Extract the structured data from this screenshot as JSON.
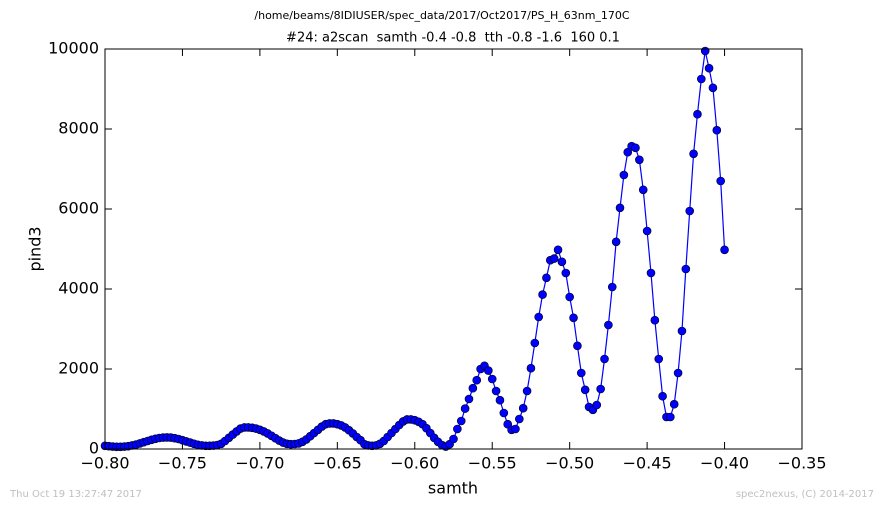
{
  "chart_data": {
    "type": "line",
    "suptitle": "/home/beams/8IDIUSER/spec_data/2017/Oct2017/PS_H_63nm_170C",
    "title": "#24: a2scan  samth -0.4 -0.8  tth -0.8 -1.6  160 0.1",
    "xlabel": "samth",
    "ylabel": "pind3",
    "footer_left": "Thu Oct 19 13:27:47 2017",
    "footer_right": "spec2nexus, (C) 2014-2017",
    "color": "#0000ff",
    "marker": "o",
    "x": [
      -0.8,
      -0.7975,
      -0.795,
      -0.7925,
      -0.79,
      -0.7875,
      -0.785,
      -0.7825,
      -0.78,
      -0.7775,
      -0.775,
      -0.7725,
      -0.77,
      -0.7675,
      -0.765,
      -0.7625,
      -0.76,
      -0.7575,
      -0.755,
      -0.7525,
      -0.75,
      -0.7475,
      -0.745,
      -0.7425,
      -0.74,
      -0.7375,
      -0.735,
      -0.7325,
      -0.73,
      -0.7275,
      -0.725,
      -0.7225,
      -0.72,
      -0.7175,
      -0.715,
      -0.7125,
      -0.71,
      -0.7075,
      -0.705,
      -0.7025,
      -0.7,
      -0.6975,
      -0.695,
      -0.6925,
      -0.69,
      -0.6875,
      -0.685,
      -0.6825,
      -0.68,
      -0.6775,
      -0.675,
      -0.6725,
      -0.67,
      -0.6675,
      -0.665,
      -0.6625,
      -0.66,
      -0.6575,
      -0.655,
      -0.6525,
      -0.65,
      -0.6475,
      -0.645,
      -0.6425,
      -0.64,
      -0.6375,
      -0.635,
      -0.6325,
      -0.63,
      -0.6275,
      -0.625,
      -0.6225,
      -0.62,
      -0.6175,
      -0.615,
      -0.6125,
      -0.61,
      -0.6075,
      -0.605,
      -0.6025,
      -0.6,
      -0.5975,
      -0.595,
      -0.5925,
      -0.59,
      -0.5875,
      -0.585,
      -0.5825,
      -0.58,
      -0.5775,
      -0.575,
      -0.5725,
      -0.57,
      -0.5675,
      -0.565,
      -0.5625,
      -0.56,
      -0.5575,
      -0.555,
      -0.5525,
      -0.55,
      -0.5475,
      -0.545,
      -0.5425,
      -0.54,
      -0.5375,
      -0.535,
      -0.5325,
      -0.53,
      -0.5275,
      -0.525,
      -0.5225,
      -0.52,
      -0.5175,
      -0.515,
      -0.5125,
      -0.51,
      -0.5075,
      -0.505,
      -0.5025,
      -0.5,
      -0.4975,
      -0.495,
      -0.4925,
      -0.49,
      -0.4875,
      -0.485,
      -0.4825,
      -0.48,
      -0.4775,
      -0.475,
      -0.4725,
      -0.47,
      -0.4675,
      -0.465,
      -0.4625,
      -0.46,
      -0.4575,
      -0.455,
      -0.4525,
      -0.45,
      -0.4475,
      -0.445,
      -0.4425,
      -0.44,
      -0.4375,
      -0.435,
      -0.4325,
      -0.43,
      -0.4275,
      -0.425,
      -0.4225,
      -0.42,
      -0.4175,
      -0.415,
      -0.4125,
      -0.41,
      -0.4075,
      -0.405,
      -0.4025,
      -0.4
    ],
    "values": [
      80,
      70,
      60,
      55,
      55,
      60,
      70,
      90,
      110,
      140,
      170,
      200,
      230,
      255,
      275,
      285,
      290,
      285,
      270,
      250,
      220,
      190,
      160,
      130,
      105,
      90,
      80,
      80,
      85,
      100,
      130,
      200,
      280,
      360,
      440,
      510,
      540,
      540,
      530,
      510,
      480,
      440,
      390,
      330,
      270,
      210,
      160,
      130,
      120,
      125,
      140,
      180,
      240,
      320,
      400,
      480,
      560,
      620,
      640,
      640,
      620,
      590,
      540,
      470,
      390,
      300,
      220,
      120,
      90,
      80,
      90,
      130,
      200,
      300,
      400,
      500,
      600,
      690,
      740,
      740,
      720,
      680,
      620,
      520,
      400,
      280,
      180,
      100,
      60,
      120,
      250,
      500,
      700,
      1010,
      1250,
      1520,
      1720,
      2000,
      2080,
      1960,
      1750,
      1450,
      1220,
      900,
      620,
      480,
      500,
      750,
      1020,
      1450,
      2020,
      2650,
      3300,
      3860,
      4280,
      4720,
      4760,
      4980,
      4680,
      4400,
      3800,
      3280,
      2580,
      1900,
      1480,
      1050,
      980,
      1100,
      1500,
      2250,
      3100,
      4050,
      5180,
      6030,
      6850,
      7420,
      7570,
      7530,
      7230,
      6480,
      5450,
      4400,
      3220,
      2250,
      1320,
      800,
      800,
      1120,
      1900,
      2950,
      4500,
      5950,
      7380,
      8370,
      9250,
      9950,
      9520,
      9030,
      7970,
      6700,
      4980
    ],
    "xlim": [
      -0.8,
      -0.35
    ],
    "xticks": [
      {
        "value": -0.8,
        "label": "−0.80"
      },
      {
        "value": -0.75,
        "label": "−0.75"
      },
      {
        "value": -0.7,
        "label": "−0.70"
      },
      {
        "value": -0.65,
        "label": "−0.65"
      },
      {
        "value": -0.6,
        "label": "−0.60"
      },
      {
        "value": -0.55,
        "label": "−0.55"
      },
      {
        "value": -0.5,
        "label": "−0.50"
      },
      {
        "value": -0.45,
        "label": "−0.45"
      },
      {
        "value": -0.4,
        "label": "−0.40"
      },
      {
        "value": -0.35,
        "label": "−0.35"
      }
    ],
    "ylim": [
      0,
      10000
    ],
    "yticks": [
      0,
      2000,
      4000,
      6000,
      8000,
      10000
    ],
    "grid": false
  }
}
